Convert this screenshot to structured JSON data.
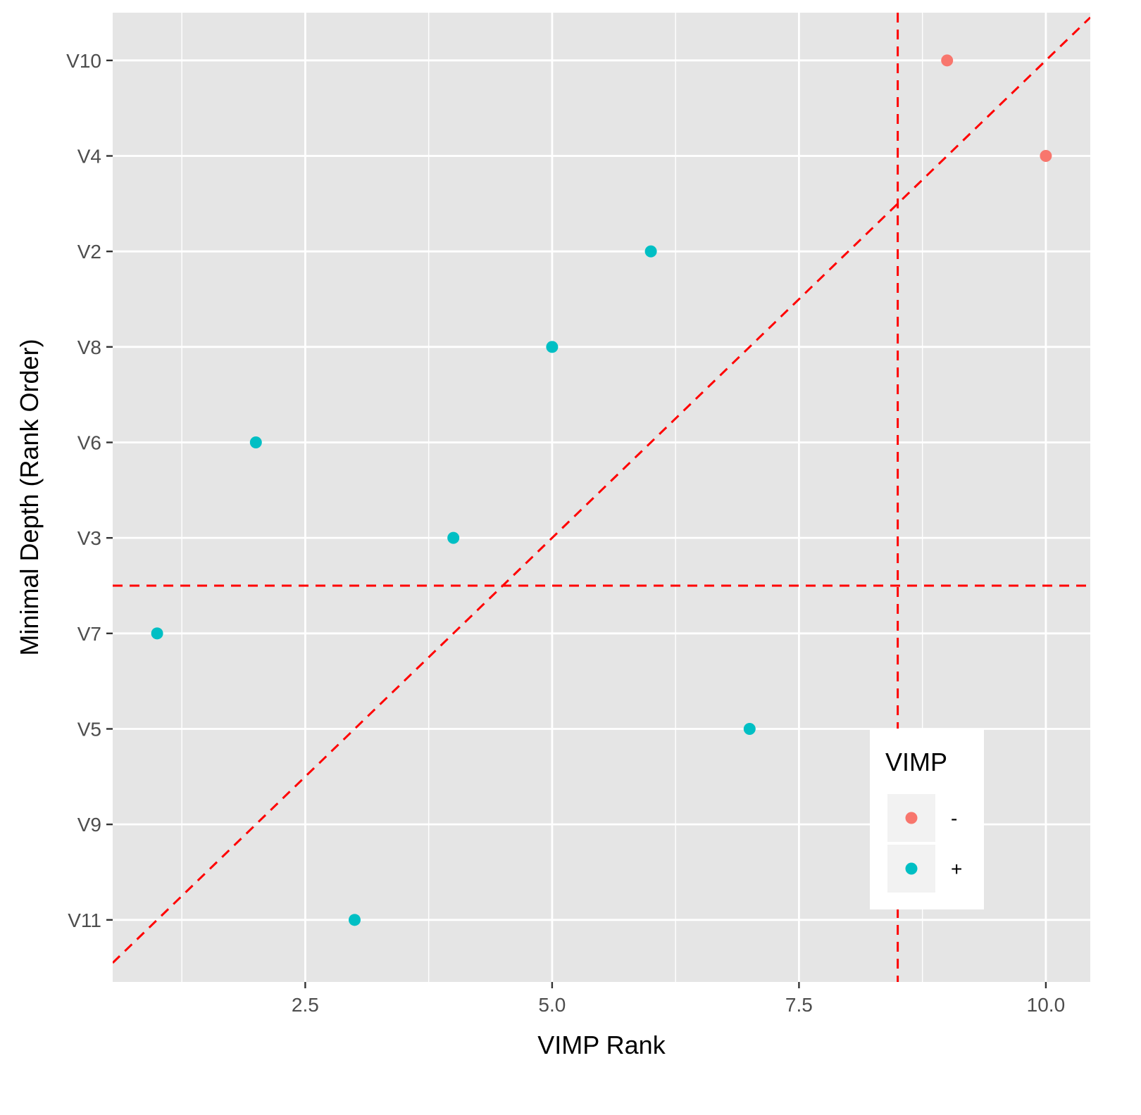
{
  "chart_data": {
    "type": "scatter",
    "xlabel": "VIMP Rank",
    "ylabel": "Minimal Depth (Rank Order)",
    "x_ticks": [
      {
        "value": 2.5,
        "label": "2.5"
      },
      {
        "value": 5.0,
        "label": "5.0"
      },
      {
        "value": 7.5,
        "label": "7.5"
      },
      {
        "value": 10.0,
        "label": "10.0"
      }
    ],
    "y_categories": [
      "V11",
      "V9",
      "V5",
      "V7",
      "V3",
      "V6",
      "V8",
      "V2",
      "V4",
      "V10"
    ],
    "xlim": [
      0.55,
      10.45
    ],
    "ylim": [
      0.35,
      10.5
    ],
    "grid": true,
    "legend": {
      "title": "VIMP",
      "position": "bottom-right",
      "items": [
        {
          "label": "-",
          "color": "#F8766D"
        },
        {
          "label": "+",
          "color": "#00BFC4"
        }
      ]
    },
    "series": [
      {
        "name": "-",
        "color": "#F8766D",
        "points": [
          {
            "x": 9,
            "y": "V10"
          },
          {
            "x": 10,
            "y": "V4"
          }
        ]
      },
      {
        "name": "+",
        "color": "#00BFC4",
        "points": [
          {
            "x": 6,
            "y": "V2"
          },
          {
            "x": 5,
            "y": "V8"
          },
          {
            "x": 2,
            "y": "V6"
          },
          {
            "x": 4,
            "y": "V3"
          },
          {
            "x": 1,
            "y": "V7"
          },
          {
            "x": 7,
            "y": "V5"
          },
          {
            "x": 3,
            "y": "V11"
          }
        ]
      }
    ],
    "reference_lines": [
      {
        "kind": "vertical",
        "x": 8.5,
        "color": "#FF0000",
        "style": "dashed"
      },
      {
        "kind": "horizontal",
        "y": 4.5,
        "color": "#FF0000",
        "style": "dashed"
      },
      {
        "kind": "diagonal",
        "slope": 1,
        "intercept": 0,
        "color": "#FF0000",
        "style": "dashed"
      }
    ],
    "colors": {
      "panel_background": "#E5E5E5",
      "grid": "#FFFFFF"
    }
  }
}
